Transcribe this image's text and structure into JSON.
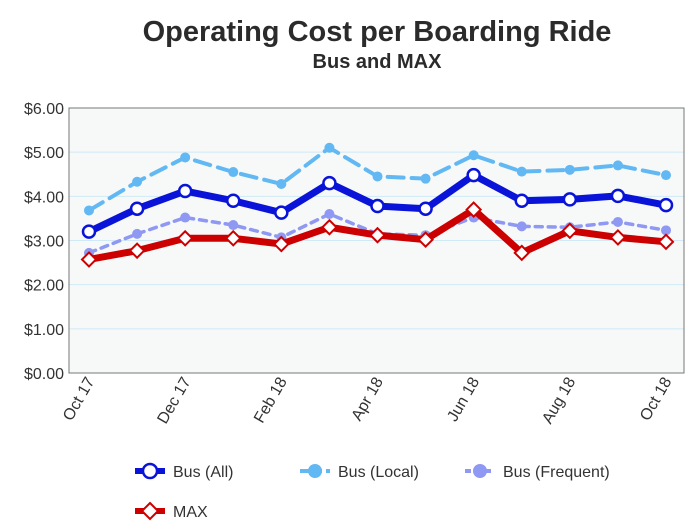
{
  "chart_data": {
    "type": "line",
    "title": "Operating Cost per Boarding Ride",
    "subtitle": "Bus and MAX",
    "xlabel": "",
    "ylabel": "",
    "categories": [
      "Oct 17",
      "Nov 17",
      "Dec 17",
      "Jan 18",
      "Feb 18",
      "Mar 18",
      "Apr 18",
      "May 18",
      "Jun 18",
      "Jul 18",
      "Aug 18",
      "Sep 18",
      "Oct 18"
    ],
    "x_tick_labels": [
      "Oct 17",
      "Dec 17",
      "Feb 18",
      "Apr 18",
      "Jun 18",
      "Aug 18",
      "Oct 18"
    ],
    "y_tick_labels": [
      "$0.00",
      "$1.00",
      "$2.00",
      "$3.00",
      "$4.00",
      "$5.00",
      "$6.00"
    ],
    "ylim": [
      0,
      6
    ],
    "y_ticks": [
      0,
      1,
      2,
      3,
      4,
      5,
      6
    ],
    "grid": true,
    "legend_position": "bottom",
    "series": [
      {
        "name": "Bus (All)",
        "color": "#0a14d8",
        "style": "solid",
        "marker": "circle-open",
        "values": [
          3.2,
          3.72,
          4.12,
          3.9,
          3.63,
          4.3,
          3.78,
          3.72,
          4.48,
          3.9,
          3.93,
          4.01,
          3.8
        ]
      },
      {
        "name": "Bus (Local)",
        "color": "#62b8f2",
        "style": "dashed",
        "marker": "circle-filled",
        "values": [
          3.68,
          4.33,
          4.88,
          4.55,
          4.28,
          5.1,
          4.45,
          4.4,
          4.93,
          4.56,
          4.6,
          4.7,
          4.48
        ]
      },
      {
        "name": "Bus (Frequent)",
        "color": "#8f98f2",
        "style": "dotted",
        "marker": "circle-filled",
        "values": [
          2.72,
          3.15,
          3.52,
          3.35,
          3.07,
          3.6,
          3.15,
          3.12,
          3.52,
          3.32,
          3.3,
          3.42,
          3.23
        ]
      },
      {
        "name": "MAX",
        "color": "#cc0000",
        "style": "solid",
        "marker": "diamond-open",
        "values": [
          2.57,
          2.77,
          3.05,
          3.05,
          2.92,
          3.3,
          3.12,
          3.02,
          3.7,
          2.72,
          3.22,
          3.07,
          2.97
        ]
      }
    ]
  }
}
